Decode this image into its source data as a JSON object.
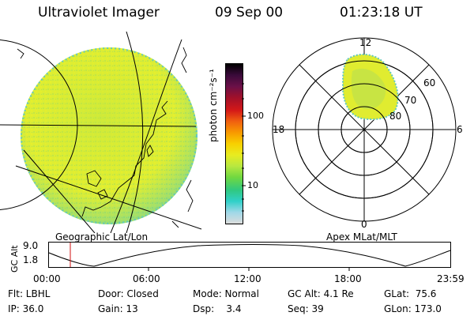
{
  "header": {
    "instrument": "Ultraviolet Imager",
    "date": "09 Sep 00",
    "time": "01:23:18 UT"
  },
  "geo_panel": {
    "caption": "Geographic Lat/Lon"
  },
  "colorbar": {
    "unit_label": "photon cm⁻²s⁻¹",
    "ticks": [
      "100",
      "10"
    ],
    "colors": [
      "#000000",
      "#3a0a3a",
      "#6a1048",
      "#a0102a",
      "#d41818",
      "#f06010",
      "#f89a00",
      "#f8d000",
      "#e8ec20",
      "#b8e840",
      "#70d840",
      "#30c880",
      "#30d0c8",
      "#a0d8e8",
      "#dcdcdc"
    ]
  },
  "polar_panel": {
    "caption": "Apex MLat/MLT",
    "mlt_labels": {
      "top": "12",
      "left": "18",
      "right": "6",
      "bottom": "0"
    },
    "lat_labels": [
      "60",
      "70",
      "80"
    ]
  },
  "alt_strip": {
    "axis_label": "GC Alt",
    "y_ticks": [
      "9.0",
      "1.8"
    ],
    "x_ticks": [
      "00:00",
      "06:00",
      "12:00",
      "18:00",
      "23:59"
    ],
    "marker_color": "#d01010"
  },
  "info": {
    "flt": "Flt: LBHL",
    "ip": "IP: 36.0",
    "door": "Door: Closed",
    "gain": "Gain: 13",
    "mode": "Mode: Normal",
    "dsp": "Dsp:    3.4",
    "gcalt": "GC Alt: 4.1 Re",
    "seq": "Seq: 39",
    "glat": "GLat:  75.6",
    "glon": "GLon: 173.0"
  }
}
